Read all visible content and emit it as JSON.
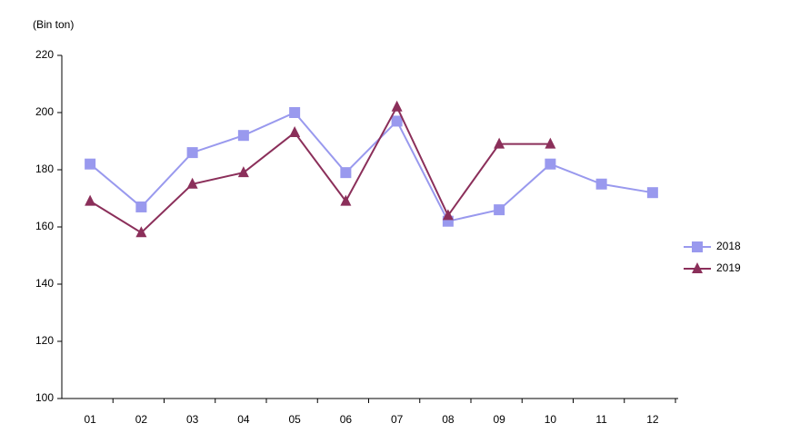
{
  "chart_data": {
    "type": "line",
    "axis_unit": "(Bin ton)",
    "categories": [
      "01",
      "02",
      "03",
      "04",
      "05",
      "06",
      "07",
      "08",
      "09",
      "10",
      "11",
      "12"
    ],
    "series": [
      {
        "name": "2018",
        "color": "#9999ee",
        "marker": "square",
        "values": [
          182,
          167,
          186,
          192,
          200,
          179,
          197,
          162,
          166,
          182,
          175,
          172
        ]
      },
      {
        "name": "2019",
        "color": "#8b2f5a",
        "marker": "triangle",
        "values": [
          169,
          158,
          175,
          179,
          193,
          169,
          202,
          164,
          189,
          189,
          null,
          null
        ]
      }
    ],
    "ylim": [
      100,
      220
    ],
    "yticks": [
      100,
      120,
      140,
      160,
      180,
      200,
      220
    ],
    "legend": "right",
    "grid": false
  }
}
